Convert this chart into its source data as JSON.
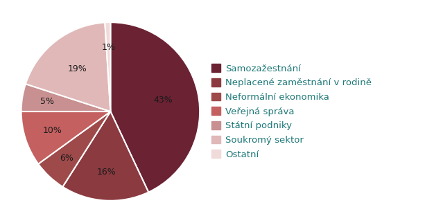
{
  "labels": [
    "Samozažestnání",
    "Neplacené zaměstnání v rodině",
    "Neformální ekonomika",
    "Veřejná správa",
    "Státní podniky",
    "Soukromý sektor",
    "Ostatní"
  ],
  "values": [
    43,
    16,
    6,
    10,
    5,
    19,
    1
  ],
  "colors": [
    "#6B2233",
    "#8B3A40",
    "#9E4A4A",
    "#C46060",
    "#C89090",
    "#E0B8B8",
    "#F0DADA"
  ],
  "pct_labels": [
    "43%",
    "16%",
    "6%",
    "10%",
    "5%",
    "19%",
    "1%"
  ],
  "legend_text_color": "#1F7878",
  "pct_text_color": "#1a1a1a",
  "background_color": "#FFFFFF",
  "legend_fontsize": 9.5,
  "pct_fontsize": 9
}
